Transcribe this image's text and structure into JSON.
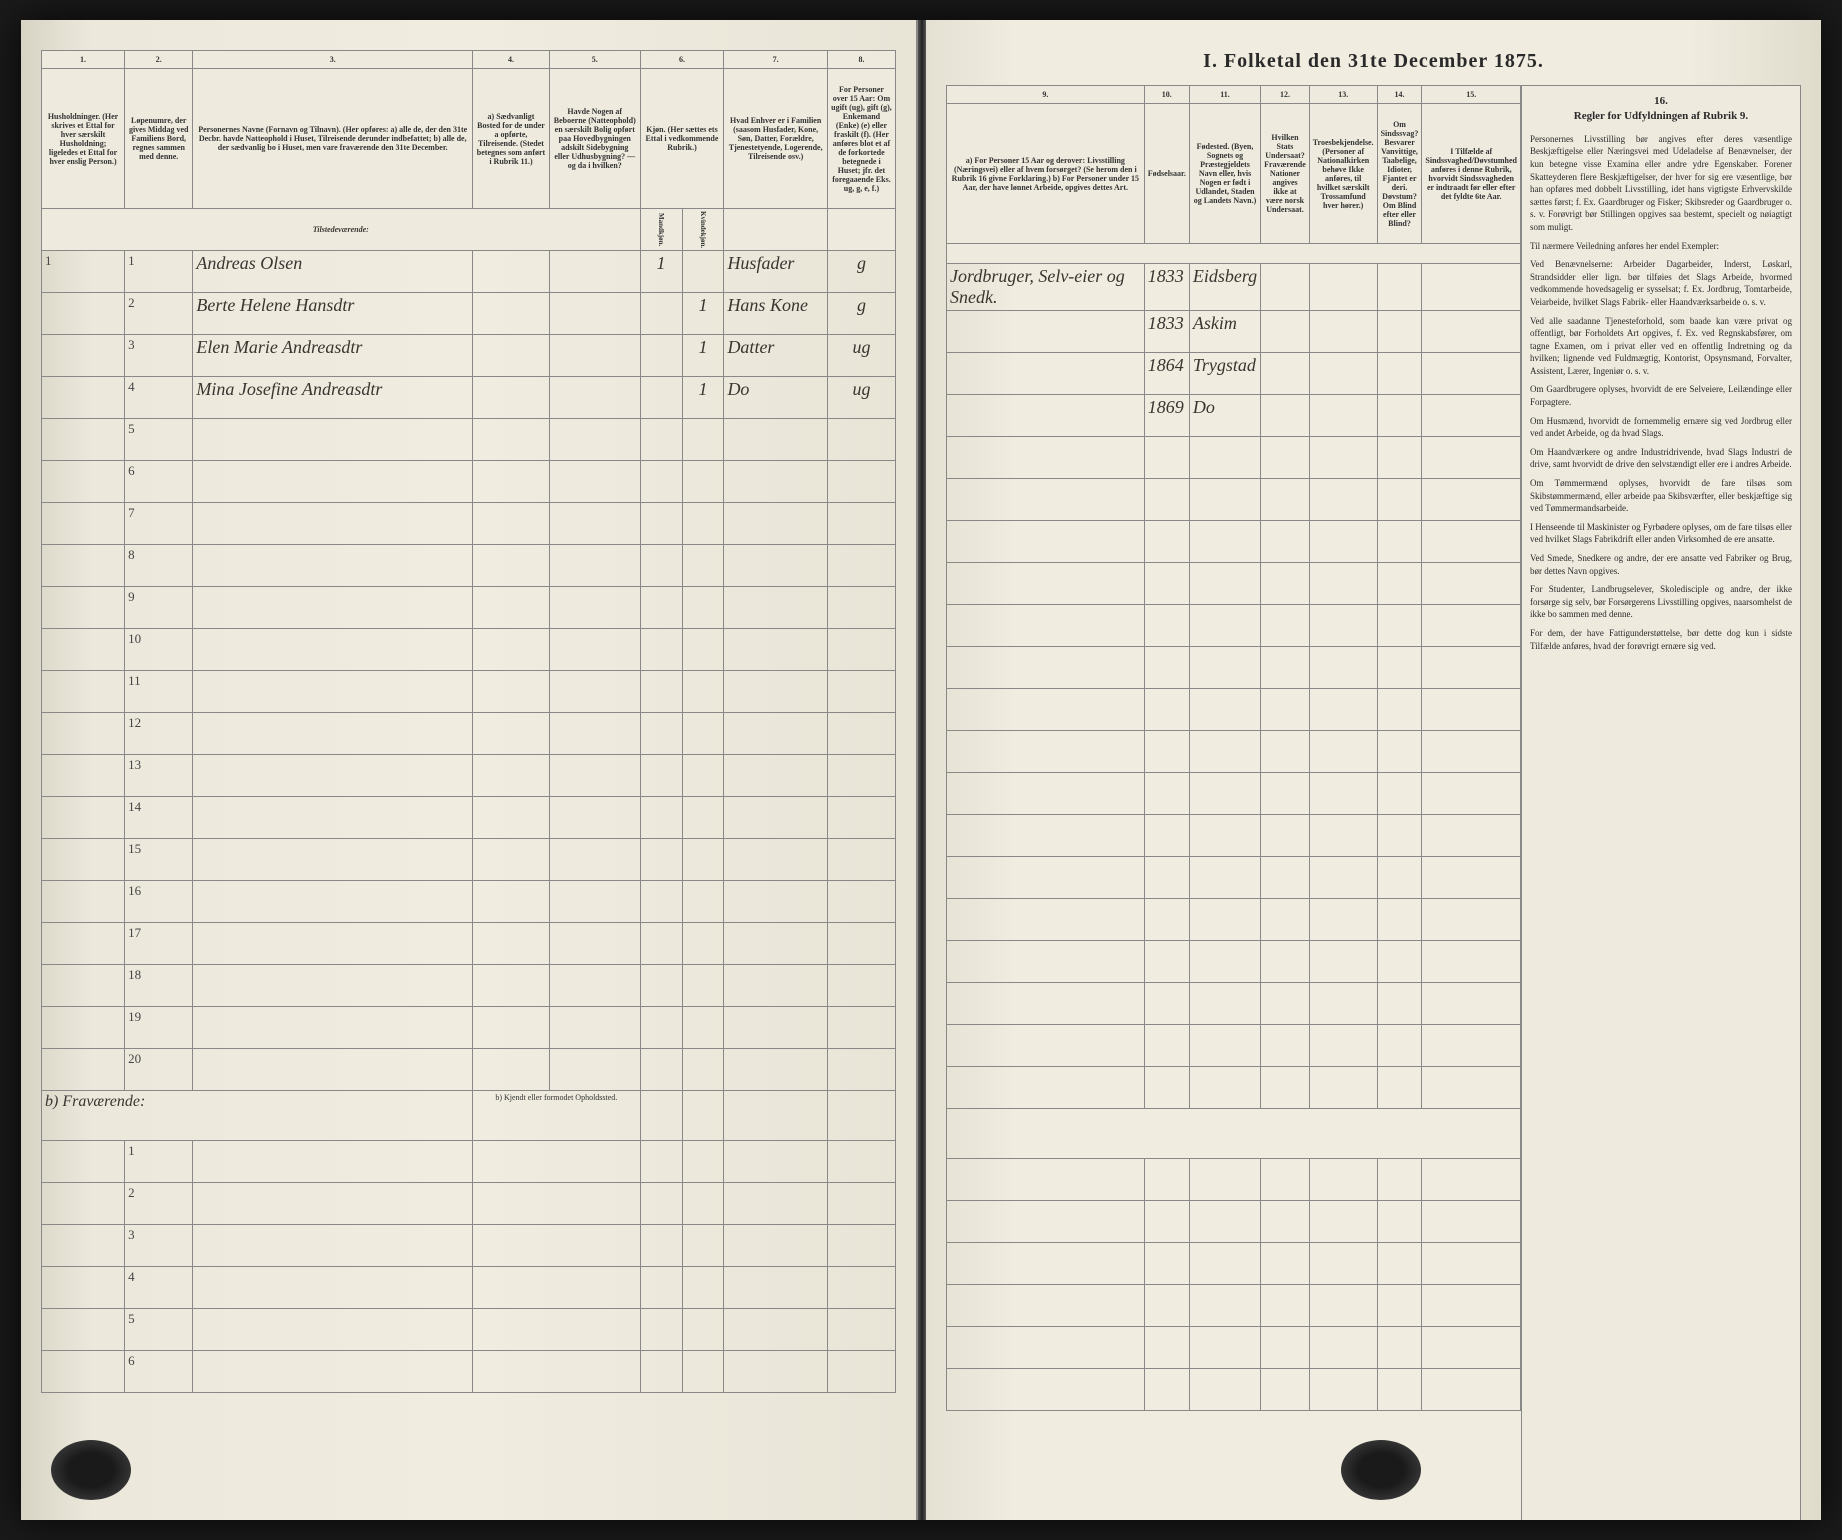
{
  "title": "I. Folketal den 31te December 1875.",
  "columns": {
    "nums": [
      "1.",
      "2.",
      "3.",
      "4.",
      "5.",
      "6.",
      "7.",
      "8.",
      "9.",
      "10.",
      "11.",
      "12.",
      "13.",
      "14.",
      "15.",
      "16."
    ],
    "h1": "Husholdninger. (Her skrives et Ettal for hver særskilt Husholdning; ligeledes et Ettal for hver enslig Person.)",
    "h2": "Løpenumre, der gives Middag ved Familiens Bord, regnes sammen med denne.",
    "h3": "Personernes Navne (Fornavn og Tilnavn). (Her opføres: a) alle de, der den 31te Decbr. havde Natteophold i Huset, Tilreisende derunder indbefattet; b) alle de, der sædvanlig bo i Huset, men vare fraværende den 31te December.",
    "h4": "a) Sædvanligt Bosted for de under a opførte, Tilreisende. (Stedet betegnes som anført i Rubrik 11.)",
    "h5": "Havde Nogen af Beboerne (Natteophold) en særskilt Bolig opført paa Hovedbygningen adskilt Sidebygning eller Udhusbygning? — og da i hvilken?",
    "h6": "Kjøn. (Her sættes ets Ettal i vedkommende Rubrik.)",
    "h6a": "Mandkjøn.",
    "h6b": "Kvindekjøn.",
    "h7": "Hvad Enhver er i Familien (saasom Husfader, Kone, Søn, Datter, Forældre, Tjenestetyende, Logerende, Tilreisende osv.)",
    "h8": "For Personer over 15 Aar: Om ugift (ug), gift (g), Enkemand (Enke) (e) eller fraskilt (f). (Her anføres blot et af de forkortede betegnede i Huset; jfr. det foregaaende Eks. ug, g, e, f.)",
    "h9": "a) For Personer 15 Aar og derover: Livsstilling (Næringsvei) eller af hvem forsørget? (Se herom den i Rubrik 16 givne Forklaring.) b) For Personer under 15 Aar, der have lønnet Arbeide, opgives dettes Art.",
    "h10": "Fødselsaar.",
    "h11": "Fødested. (Byen, Sognets og Præstegjeldets Navn eller, hvis Nogen er født i Udlandet, Staden og Landets Navn.)",
    "h12": "Hvilken Stats Undersaat? Fraværende Nationer angives ikke at være norsk Undersaat.",
    "h13": "Troesbekjendelse. (Personer af Nationalkirken behøve Ikke anføres, til hvilket særskilt Trossamfund hver hører.)",
    "h14": "Om Sindssvag? Besvarer Vanvittige, Taabelige, Idioter, Fjantet er deri. Døvstum? Om Blind efter eller Blind?",
    "h15": "I Tilfælde af Sindssvaghed/Døvstumhed anføres i denne Rubrik, hvorvidt Sindssvagheden er indtraadt før eller efter det fyldte 6te Aar.",
    "h16": "Regler for Udfyldningen af Rubrik 9."
  },
  "section_present": "Tilstedeværende:",
  "section_absent": "b) Fraværende:",
  "section_absent_col": "b) Kjendt eller formodet Opholdssted.",
  "entries": [
    {
      "num": "1",
      "hh": "1",
      "name": "Andreas Olsen",
      "sex_m": "1",
      "sex_f": "",
      "role": "Husfader",
      "status": "g",
      "occ": "Jordbruger, Selv-eier og Snedk.",
      "year": "1833",
      "place": "Eidsberg"
    },
    {
      "num": "2",
      "hh": "",
      "name": "Berte Helene Hansdtr",
      "sex_m": "",
      "sex_f": "1",
      "role": "Hans Kone",
      "status": "g",
      "occ": "",
      "year": "1833",
      "place": "Askim"
    },
    {
      "num": "3",
      "hh": "",
      "name": "Elen Marie Andreasdtr",
      "sex_m": "",
      "sex_f": "1",
      "role": "Datter",
      "status": "ug",
      "occ": "",
      "year": "1864",
      "place": "Trygstad"
    },
    {
      "num": "4",
      "hh": "",
      "name": "Mina Josefine Andreasdtr",
      "sex_m": "",
      "sex_f": "1",
      "role": "Do",
      "status": "ug",
      "occ": "",
      "year": "1869",
      "place": "Do"
    }
  ],
  "row_nums_present": [
    "1",
    "2",
    "3",
    "4",
    "5",
    "6",
    "7",
    "8",
    "9",
    "10",
    "11",
    "12",
    "13",
    "14",
    "15",
    "16",
    "17",
    "18",
    "19",
    "20"
  ],
  "row_nums_absent": [
    "1",
    "2",
    "3",
    "4",
    "5",
    "6"
  ],
  "rules": {
    "title": "Regler for Udfyldningen af Rubrik 9.",
    "p1": "Personernes Livsstilling bør angives efter deres væsentlige Beskjæftigelse eller Næringsvei med Udeladelse af Benævnelser, der kun betegne visse Examina eller andre ydre Egenskaber. Forener Skatteyderen flere Beskjæftigelser, der hver for sig ere væsentlige, bør han opføres med dobbelt Livsstilling, idet hans vigtigste Erhvervskilde sættes først; f. Ex. Gaardbruger og Fisker; Skibsreder og Gaardbruger o. s. v. Forøvrigt bør Stillingen opgives saa bestemt, specielt og nøiagtigt som muligt.",
    "p2": "Til nærmere Veiledning anføres her endel Exempler:",
    "p3": "Ved Benævnelserne: Arbeider Dagarbeider, Inderst, Løskarl, Strandsidder eller lign. bør tilføies det Slags Arbeide, hvormed vedkommende hovedsagelig er sysselsat; f. Ex. Jordbrug, Tomtarbeide, Veiarbeide, hvilket Slags Fabrik- eller Haandværksarbeide o. s. v.",
    "p4": "Ved alle saadanne Tjenesteforhold, som baade kan være privat og offentligt, bør Forholdets Art opgives, f. Ex. ved Regnskabsfører, om tagne Examen, om i privat eller ved en offentlig Indretning og da hvilken; lignende ved Fuldmægtig, Kontorist, Opsynsmand, Forvalter, Assistent, Lærer, Ingeniør o. s. v.",
    "p5": "Om Gaardbrugere oplyses, hvorvidt de ere Selveiere, Leilændinge eller Forpagtere.",
    "p6": "Om Husmænd, hvorvidt de fornemmelig ernære sig ved Jordbrug eller ved andet Arbeide, og da hvad Slags.",
    "p7": "Om Haandværkere og andre Industridrivende, hvad Slags Industri de drive, samt hvorvidt de drive den selvstændigt eller ere i andres Arbeide.",
    "p8": "Om Tømmermænd oplyses, hvorvidt de fare tilsøs som Skibstømmermænd, eller arbeide paa Skibsværfter, eller beskjæftige sig ved Tømmermandsarbeide.",
    "p9": "I Henseende til Maskinister og Fyrbødere oplyses, om de fare tilsøs eller ved hvilket Slags Fabrikdrift eller anden Virksomhed de ere ansatte.",
    "p10": "Ved Smede, Snedkere og andre, der ere ansatte ved Fabriker og Brug, bør dettes Navn opgives.",
    "p11": "For Studenter, Landbrugselever, Skoledisciple og andre, der ikke forsørge sig selv, bør Forsørgerens Livsstilling opgives, naarsomhelst de ikke bo sammen med denne.",
    "p12": "For dem, der have Fattigunderstøttelse, bør dette dog kun i sidste Tilfælde anføres, hvad der forøvrigt ernære sig ved."
  }
}
